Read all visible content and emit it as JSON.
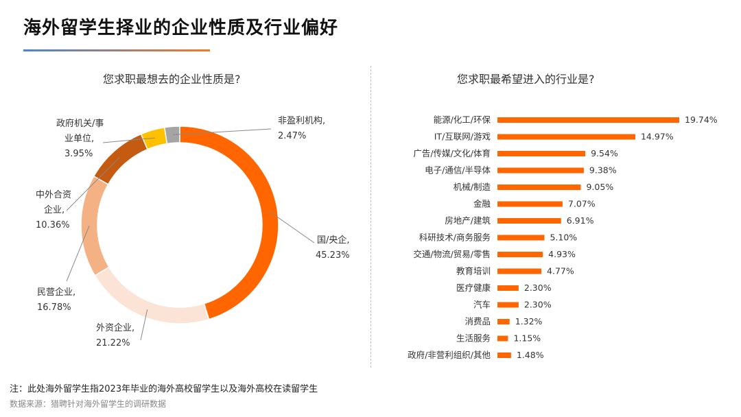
{
  "page": {
    "title": "海外留学生择业的企业性质及行业偏好",
    "note": "注：此处海外留学生指2023年毕业的海外高校留学生以及海外高校在读留学生",
    "source": "数据来源：猎聘针对海外留学生的调研数据"
  },
  "colors": {
    "accent": "#ff6600",
    "bar": "#ff6600",
    "title_line_start": "#4a86c8",
    "title_line_end": "#f07a2a"
  },
  "chart_data": [
    {
      "type": "pie",
      "title": "您求职最想去的企业性质是?",
      "slices": [
        {
          "name": "国/央企,",
          "value": 45.23,
          "label": "45.23%",
          "color": "#ff6600"
        },
        {
          "name": "外资企业,",
          "value": 21.22,
          "label": "21.22%",
          "color": "#fbe4d5"
        },
        {
          "name": "民营企业,",
          "value": 16.78,
          "label": "16.78%",
          "color": "#f4b183"
        },
        {
          "name": "中外合资企业,",
          "value": 10.36,
          "label": "10.36%",
          "color": "#c55a11"
        },
        {
          "name": "政府机关/事业单位,",
          "value": 3.95,
          "label": "3.95%",
          "color": "#ffc000"
        },
        {
          "name": "非盈利机构,",
          "value": 2.47,
          "label": "2.47%",
          "color": "#a5a5a5"
        }
      ]
    },
    {
      "type": "bar",
      "title": "您求职最希望进入的行业是?",
      "categories": [
        "能源/化工/环保",
        "IT/互联网/游戏",
        "广告/传媒/文化/体育",
        "电子/通信/半导体",
        "机械/制造",
        "金融",
        "房地产/建筑",
        "科研技术/商务服务",
        "交通/物流/贸易/零售",
        "教育培训",
        "医疗健康",
        "汽车",
        "消费品",
        "生活服务",
        "政府/非营利组织/其他"
      ],
      "values": [
        19.74,
        14.97,
        9.54,
        9.38,
        9.05,
        7.07,
        6.91,
        5.1,
        4.93,
        4.77,
        2.3,
        2.3,
        1.32,
        1.15,
        1.48
      ],
      "labels": [
        "19.74%",
        "14.97%",
        "9.54%",
        "9.38%",
        "9.05%",
        "7.07%",
        "6.91%",
        "5.10%",
        "4.93%",
        "4.77%",
        "2.30%",
        "2.30%",
        "1.32%",
        "1.15%",
        "1.48%"
      ]
    }
  ]
}
